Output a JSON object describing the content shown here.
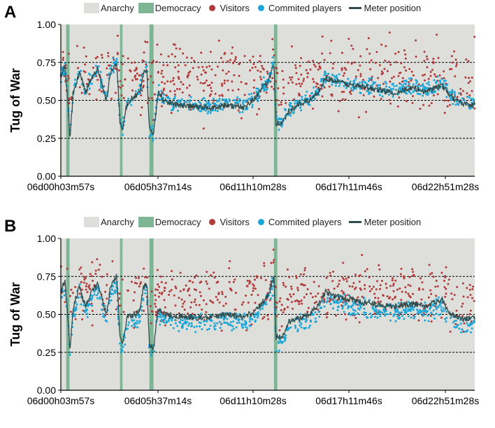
{
  "chart_data": [
    {
      "panel": "A",
      "type": "scatter",
      "ylabel": "Tug of War",
      "ylim": [
        0,
        1
      ],
      "yticks": [
        "0.00",
        "0.25",
        "0.50",
        "0.75",
        "1.00"
      ],
      "xticks": [
        "06d00h03m57s",
        "06d05h37m14s",
        "06d11h10m28s",
        "06d17h11m46s",
        "06d22h51m28s"
      ],
      "legend": [
        {
          "label": "Anarchy",
          "kind": "rect",
          "color": "#dededa"
        },
        {
          "label": "Democracy",
          "kind": "rect",
          "color": "#7db595"
        },
        {
          "label": "Visitors",
          "kind": "dot",
          "color": "#b23a3a"
        },
        {
          "label": "Commited players",
          "kind": "dot",
          "color": "#1aa7d8"
        },
        {
          "label": "Meter position",
          "kind": "line",
          "color": "#2f4b4b"
        }
      ],
      "democracy_periods": [
        [
          0.013,
          0.021
        ],
        [
          0.143,
          0.149
        ],
        [
          0.214,
          0.224
        ],
        [
          0.515,
          0.523
        ]
      ],
      "meter_keypoints": [
        [
          0.0,
          0.65
        ],
        [
          0.01,
          0.72
        ],
        [
          0.018,
          0.45
        ],
        [
          0.022,
          0.25
        ],
        [
          0.03,
          0.55
        ],
        [
          0.045,
          0.68
        ],
        [
          0.06,
          0.55
        ],
        [
          0.075,
          0.65
        ],
        [
          0.09,
          0.7
        ],
        [
          0.1,
          0.6
        ],
        [
          0.11,
          0.5
        ],
        [
          0.12,
          0.68
        ],
        [
          0.135,
          0.75
        ],
        [
          0.143,
          0.35
        ],
        [
          0.149,
          0.3
        ],
        [
          0.16,
          0.48
        ],
        [
          0.175,
          0.52
        ],
        [
          0.19,
          0.55
        ],
        [
          0.2,
          0.68
        ],
        [
          0.208,
          0.7
        ],
        [
          0.214,
          0.3
        ],
        [
          0.224,
          0.28
        ],
        [
          0.235,
          0.55
        ],
        [
          0.25,
          0.5
        ],
        [
          0.28,
          0.47
        ],
        [
          0.32,
          0.46
        ],
        [
          0.36,
          0.45
        ],
        [
          0.4,
          0.47
        ],
        [
          0.44,
          0.45
        ],
        [
          0.47,
          0.52
        ],
        [
          0.5,
          0.62
        ],
        [
          0.515,
          0.75
        ],
        [
          0.52,
          0.35
        ],
        [
          0.535,
          0.35
        ],
        [
          0.55,
          0.42
        ],
        [
          0.58,
          0.48
        ],
        [
          0.6,
          0.5
        ],
        [
          0.62,
          0.55
        ],
        [
          0.64,
          0.65
        ],
        [
          0.66,
          0.63
        ],
        [
          0.7,
          0.6
        ],
        [
          0.75,
          0.58
        ],
        [
          0.8,
          0.55
        ],
        [
          0.85,
          0.58
        ],
        [
          0.88,
          0.56
        ],
        [
          0.92,
          0.6
        ],
        [
          0.94,
          0.53
        ],
        [
          0.97,
          0.48
        ],
        [
          1.0,
          0.47
        ]
      ],
      "committed_offset": 0.01,
      "committed_spread": 0.035,
      "visitor_center": 0.64,
      "visitor_spread": 0.14
    },
    {
      "panel": "B",
      "type": "scatter",
      "ylabel": "Tug of War",
      "ylim": [
        0,
        1
      ],
      "yticks": [
        "0.00",
        "0.25",
        "0.50",
        "0.75",
        "1.00"
      ],
      "xticks": [
        "06d00h03m57s",
        "06d05h37m14s",
        "06d11h10m28s",
        "06d17h11m46s",
        "06d22h51m28s"
      ],
      "legend": [
        {
          "label": "Anarchy",
          "kind": "rect",
          "color": "#dededa"
        },
        {
          "label": "Democracy",
          "kind": "rect",
          "color": "#7db595"
        },
        {
          "label": "Visitors",
          "kind": "dot",
          "color": "#b23a3a"
        },
        {
          "label": "Commited players",
          "kind": "dot",
          "color": "#1aa7d8"
        },
        {
          "label": "Meter position",
          "kind": "line",
          "color": "#2f4b4b"
        }
      ],
      "democracy_periods": [
        [
          0.013,
          0.021
        ],
        [
          0.143,
          0.149
        ],
        [
          0.214,
          0.224
        ],
        [
          0.515,
          0.523
        ]
      ],
      "meter_keypoints": [
        [
          0.0,
          0.65
        ],
        [
          0.01,
          0.72
        ],
        [
          0.018,
          0.45
        ],
        [
          0.022,
          0.25
        ],
        [
          0.03,
          0.55
        ],
        [
          0.045,
          0.68
        ],
        [
          0.06,
          0.55
        ],
        [
          0.075,
          0.65
        ],
        [
          0.09,
          0.7
        ],
        [
          0.1,
          0.6
        ],
        [
          0.11,
          0.5
        ],
        [
          0.12,
          0.68
        ],
        [
          0.135,
          0.75
        ],
        [
          0.143,
          0.35
        ],
        [
          0.149,
          0.3
        ],
        [
          0.16,
          0.48
        ],
        [
          0.175,
          0.5
        ],
        [
          0.19,
          0.52
        ],
        [
          0.2,
          0.68
        ],
        [
          0.208,
          0.7
        ],
        [
          0.214,
          0.3
        ],
        [
          0.224,
          0.28
        ],
        [
          0.235,
          0.55
        ],
        [
          0.25,
          0.5
        ],
        [
          0.28,
          0.49
        ],
        [
          0.32,
          0.48
        ],
        [
          0.36,
          0.48
        ],
        [
          0.4,
          0.5
        ],
        [
          0.44,
          0.48
        ],
        [
          0.47,
          0.52
        ],
        [
          0.5,
          0.62
        ],
        [
          0.515,
          0.75
        ],
        [
          0.52,
          0.35
        ],
        [
          0.535,
          0.35
        ],
        [
          0.55,
          0.45
        ],
        [
          0.58,
          0.48
        ],
        [
          0.6,
          0.5
        ],
        [
          0.62,
          0.55
        ],
        [
          0.64,
          0.65
        ],
        [
          0.66,
          0.62
        ],
        [
          0.7,
          0.6
        ],
        [
          0.75,
          0.57
        ],
        [
          0.8,
          0.55
        ],
        [
          0.85,
          0.57
        ],
        [
          0.88,
          0.55
        ],
        [
          0.92,
          0.6
        ],
        [
          0.94,
          0.5
        ],
        [
          0.97,
          0.47
        ],
        [
          1.0,
          0.48
        ]
      ],
      "committed_offset": -0.04,
      "committed_spread": 0.04,
      "visitor_center": 0.62,
      "visitor_spread": 0.12
    }
  ]
}
